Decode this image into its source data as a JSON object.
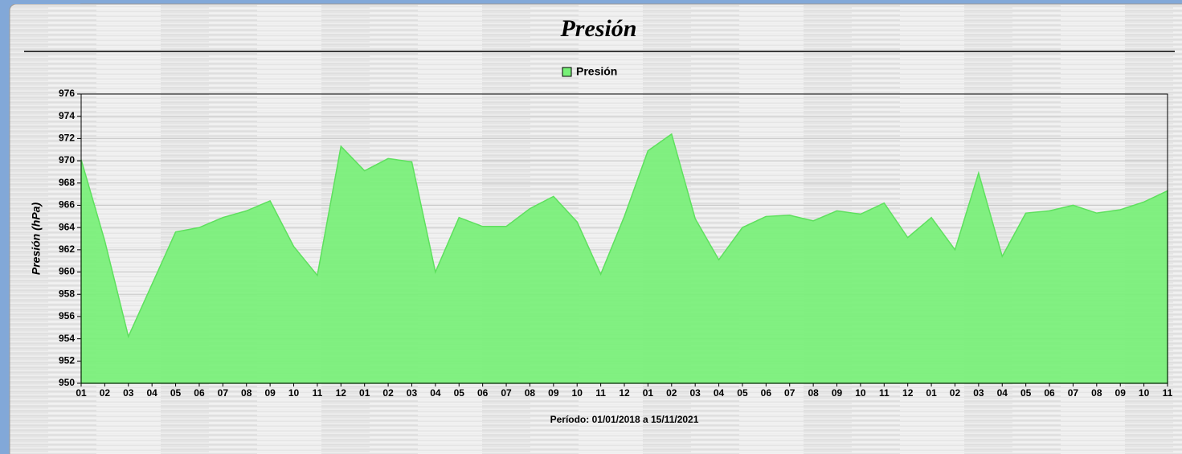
{
  "chart_data": {
    "type": "area",
    "title": "Presión",
    "x_label": "Período: 01/01/2018 a 15/11/2021",
    "y_label": "Presión (hPa)",
    "categories": [
      "01",
      "02",
      "03",
      "04",
      "05",
      "06",
      "07",
      "08",
      "09",
      "10",
      "11",
      "12",
      "01",
      "02",
      "03",
      "04",
      "05",
      "06",
      "07",
      "08",
      "09",
      "10",
      "11",
      "12",
      "01",
      "02",
      "03",
      "04",
      "05",
      "06",
      "07",
      "08",
      "09",
      "10",
      "11",
      "12",
      "01",
      "02",
      "03",
      "04",
      "05",
      "06",
      "07",
      "08",
      "09",
      "10",
      "11"
    ],
    "series": [
      {
        "name": "Presión",
        "color": "#77f077",
        "values": [
          970.1,
          962.8,
          954.2,
          958.9,
          963.6,
          964.0,
          964.9,
          965.5,
          966.4,
          962.3,
          959.7,
          971.3,
          969.1,
          970.2,
          969.9,
          960.0,
          964.9,
          964.1,
          964.1,
          965.7,
          966.8,
          964.5,
          959.8,
          965.0,
          970.9,
          972.4,
          964.8,
          961.1,
          964.0,
          965.0,
          965.1,
          964.6,
          965.5,
          965.2,
          966.2,
          963.1,
          964.9,
          962.0,
          968.9,
          961.4,
          965.3,
          965.5,
          966.0,
          965.3,
          965.6,
          966.3,
          967.3
        ]
      }
    ],
    "ylim": [
      950,
      976
    ],
    "yticks": [
      950,
      952,
      954,
      956,
      958,
      960,
      962,
      964,
      966,
      968,
      970,
      972,
      974,
      976
    ],
    "grid": true,
    "legend": "top"
  }
}
